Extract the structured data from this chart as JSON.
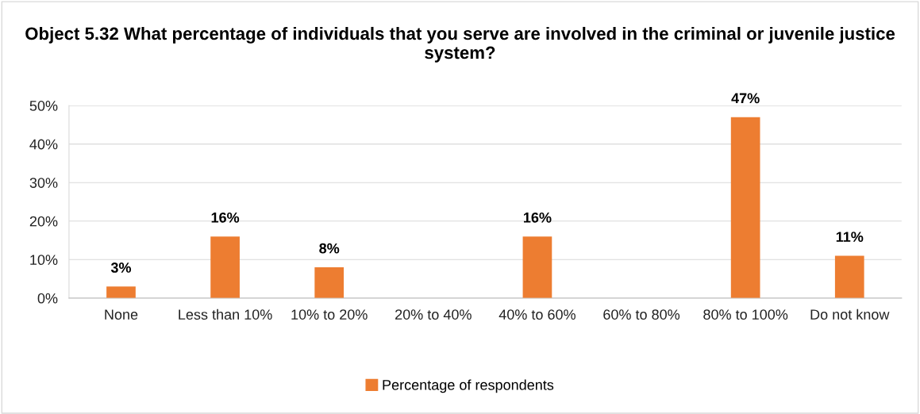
{
  "chart_data": {
    "type": "bar",
    "title": "Object 5.32 What percentage of individuals that you serve are involved in the criminal or juvenile justice system?",
    "categories": [
      "None",
      "Less than 10%",
      "10% to 20%",
      "20% to 40%",
      "40% to 60%",
      "60% to 80%",
      "80% to 100%",
      "Do not know"
    ],
    "series": [
      {
        "name": "Percentage of respondents",
        "color": "#ed7d31",
        "values": [
          3,
          16,
          8,
          null,
          16,
          null,
          47,
          11
        ],
        "value_labels": [
          "3%",
          "16%",
          "8%",
          null,
          "16%",
          null,
          "47%",
          "11%"
        ]
      }
    ],
    "ylim": [
      0,
      50
    ],
    "yticks": [
      {
        "value": 0,
        "label": "0%"
      },
      {
        "value": 10,
        "label": "10%"
      },
      {
        "value": 20,
        "label": "20%"
      },
      {
        "value": 30,
        "label": "30%"
      },
      {
        "value": 40,
        "label": "40%"
      },
      {
        "value": 50,
        "label": "50%"
      }
    ],
    "grid": "y",
    "legend": "bottom"
  }
}
